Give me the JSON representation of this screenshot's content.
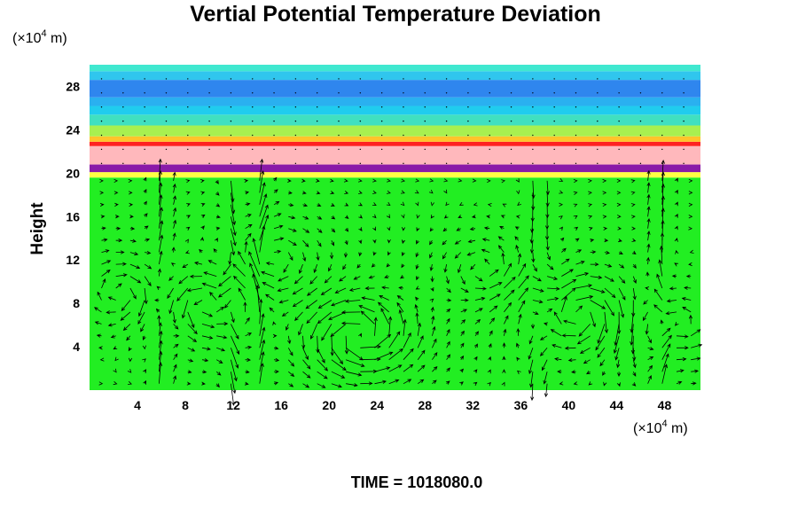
{
  "chart_data": {
    "type": "heatmap",
    "title": "Vertial Potential Temperature Deviation",
    "ylabel": "Height",
    "xunit": {
      "prefix": "(×10",
      "exp": "4",
      "suffix": " m)"
    },
    "yunit": {
      "prefix": "(×10",
      "exp": "4",
      "suffix": " m)"
    },
    "xlim": [
      0,
      51
    ],
    "ylim": [
      0,
      30
    ],
    "xticks": [
      4,
      8,
      12,
      16,
      20,
      24,
      28,
      32,
      36,
      40,
      44,
      48
    ],
    "yticks": [
      4,
      8,
      12,
      16,
      20,
      24,
      28
    ],
    "grid": false,
    "time_label": "TIME = 1018080.0",
    "bands": [
      {
        "y0": 0,
        "y1": 19.6,
        "color": "#22ee22"
      },
      {
        "y0": 19.6,
        "y1": 20.1,
        "color": "#ffff44"
      },
      {
        "y0": 20.1,
        "y1": 20.8,
        "color": "#8a1aa8"
      },
      {
        "y0": 20.8,
        "y1": 22.5,
        "color": "#ffb8bc"
      },
      {
        "y0": 22.5,
        "y1": 22.9,
        "color": "#ff2222"
      },
      {
        "y0": 22.9,
        "y1": 23.4,
        "color": "#ffc42a"
      },
      {
        "y0": 23.4,
        "y1": 24.4,
        "color": "#a8f050"
      },
      {
        "y0": 24.4,
        "y1": 25.4,
        "color": "#40e0c0"
      },
      {
        "y0": 25.4,
        "y1": 26.2,
        "color": "#20ccee"
      },
      {
        "y0": 26.2,
        "y1": 27.0,
        "color": "#2ab0f0"
      },
      {
        "y0": 27.0,
        "y1": 28.6,
        "color": "#2f86ee"
      },
      {
        "y0": 28.6,
        "y1": 29.4,
        "color": "#30c6ee"
      },
      {
        "y0": 29.4,
        "y1": 30.0,
        "color": "#40e8d0"
      }
    ],
    "vortices": [
      {
        "cx": 22.5,
        "cy": 5.0,
        "strength": 1.0
      },
      {
        "cx": 9.5,
        "cy": 8.0,
        "strength": 0.7
      },
      {
        "cx": 41.0,
        "cy": 7.0,
        "strength": -0.8
      },
      {
        "cx": 3.0,
        "cy": 9.0,
        "strength": -0.6
      },
      {
        "cx": 15.0,
        "cy": 12.0,
        "strength": -0.5
      },
      {
        "cx": 33.0,
        "cy": 11.0,
        "strength": 0.5
      },
      {
        "cx": 49.0,
        "cy": 6.0,
        "strength": 0.6
      }
    ],
    "jets": [
      {
        "x": 6.0,
        "dir": 1
      },
      {
        "x": 12.0,
        "dir": -1
      },
      {
        "x": 14.0,
        "dir": 1
      },
      {
        "x": 37.5,
        "dir": -1
      },
      {
        "x": 47.5,
        "dir": 1
      }
    ],
    "colors": {
      "background": "#22ee22",
      "arrow": "#000000"
    }
  }
}
